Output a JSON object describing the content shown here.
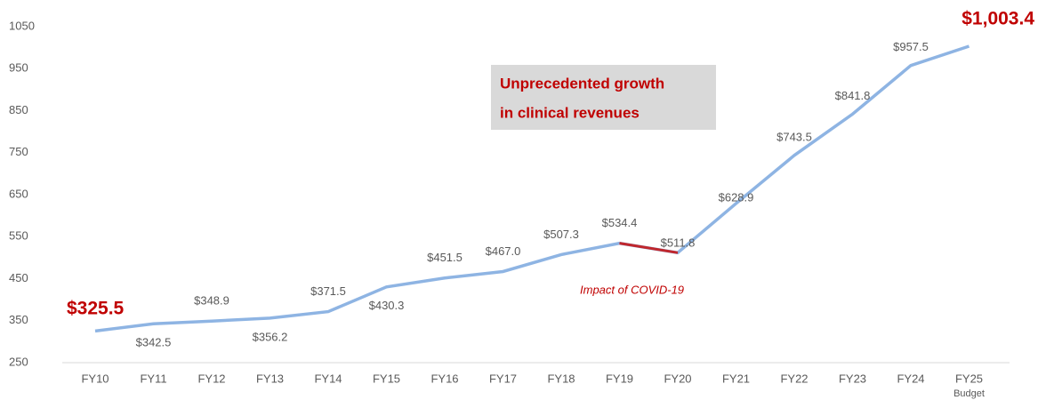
{
  "chart_data": {
    "type": "line",
    "categories": [
      "FY10",
      "FY11",
      "FY12",
      "FY13",
      "FY14",
      "FY15",
      "FY16",
      "FY17",
      "FY18",
      "FY19",
      "FY20",
      "FY21",
      "FY22",
      "FY23",
      "FY24",
      "FY25"
    ],
    "category_sublabel": "Budget",
    "values": [
      325.5,
      342.5,
      348.9,
      356.2,
      371.5,
      430.3,
      451.5,
      467.0,
      507.3,
      534.4,
      511.8,
      628.9,
      743.5,
      841.8,
      957.5,
      1003.4
    ],
    "value_labels": [
      "$325.5",
      "$342.5",
      "$348.9",
      "$356.2",
      "$371.5",
      "$430.3",
      "$451.5",
      "$467.0",
      "$507.3",
      "$534.4",
      "$511.8",
      "$628.9",
      "$743.5",
      "$841.8",
      "$957.5",
      "$1,003.4"
    ],
    "color": "#8eb4e3",
    "highlight_segment": [
      9,
      10
    ],
    "highlight_color": "#c0272d",
    "ylim": [
      250,
      1050
    ],
    "yticks": [
      250,
      350,
      450,
      550,
      650,
      750,
      850,
      950,
      1050
    ],
    "grid": false,
    "annotations": [
      "Unprecedented growth",
      "in clinical revenues",
      "Impact of COVID-19"
    ]
  }
}
